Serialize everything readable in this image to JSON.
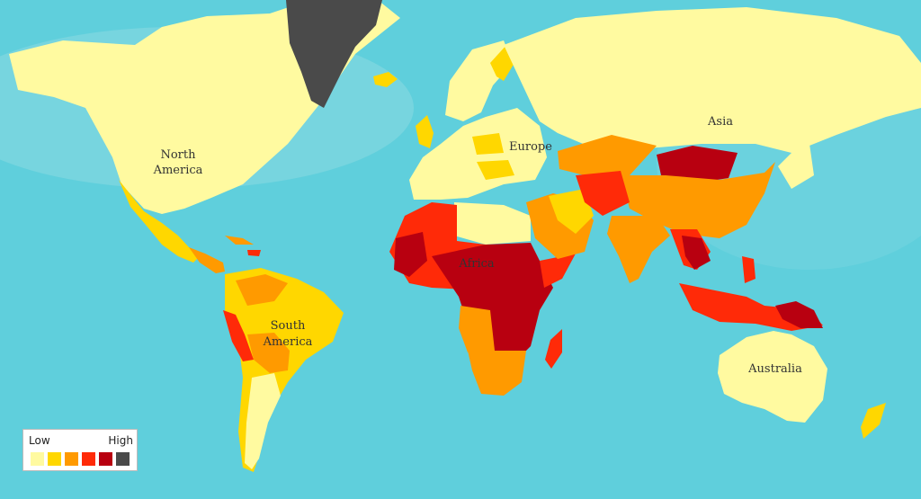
{
  "map": {
    "labels": {
      "north_america": [
        "North",
        "America"
      ],
      "south_america": [
        "South",
        "America"
      ],
      "europe": "Europe",
      "africa": "Africa",
      "asia": "Asia",
      "australia": "Australia"
    }
  },
  "legend": {
    "low": "Low",
    "high": "High",
    "colors": [
      "#fffaa0",
      "#ffd700",
      "#ff9a00",
      "#ff2a08",
      "#b80010",
      "#4a4a4a"
    ]
  },
  "colors": {
    "ocean": "#5fcfdc",
    "very_low": "#fffaa0",
    "low": "#ffd700",
    "medium": "#ff9a00",
    "high": "#ff2a08",
    "very_high": "#b80010",
    "no_data": "#4a4a4a"
  }
}
